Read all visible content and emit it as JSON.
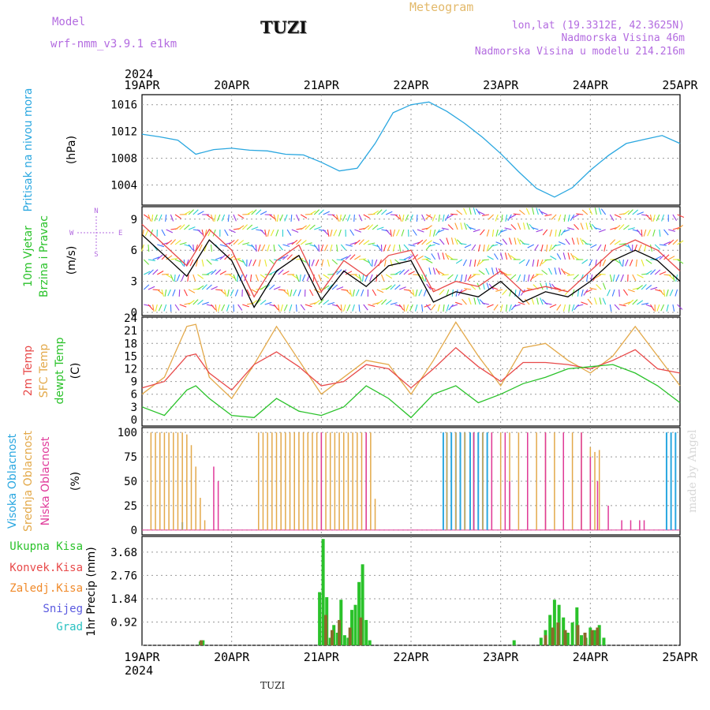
{
  "header": {
    "model_label": "Model",
    "model_name": "wrf-nmm_v3.9.1  e1km",
    "station": "TUZI",
    "meteogram_label": "Meteogram",
    "location": "lon,lat (19.3312E, 42.3625N)",
    "elevation": "Nadmorska Visina 46m",
    "model_elevation": "Nadmorska Visina u modelu 214.216m",
    "watermark": "made by Angel",
    "footer_station": "TUZI"
  },
  "axis": {
    "year": "2024",
    "days": [
      "19APR",
      "20APR",
      "21APR",
      "22APR",
      "23APR",
      "24APR",
      "25APR"
    ]
  },
  "colors": {
    "pressure": "#2aa7e0",
    "wind_speed": "#000000",
    "wind_gust": "#e84a4a",
    "temp_2m": "#e84a4a",
    "temp_sfc": "#e3a94a",
    "dewpoint": "#2ac22a",
    "cloud_high": "#2aa7e0",
    "cloud_mid": "#e3a94a",
    "cloud_low": "#e03a9a",
    "precip_total": "#2ac22a",
    "precip_conv": "#e84a4a",
    "precip_frozen": "#f08a2a",
    "snow": "#5a5ae0",
    "hail": "#2ac2c2"
  },
  "chart_data": [
    {
      "type": "line",
      "panel": "pressure",
      "ylabel_rotated": "Pritisak na nivou mora",
      "unit": "(hPa)",
      "x_days": [
        0,
        0.2,
        0.4,
        0.6,
        0.8,
        1.0,
        1.2,
        1.4,
        1.6,
        1.8,
        2.0,
        2.2,
        2.4,
        2.6,
        2.8,
        3.0,
        3.2,
        3.4,
        3.6,
        3.8,
        4.0,
        4.2,
        4.4,
        4.6,
        4.8,
        5.0,
        5.2,
        5.4,
        5.6,
        5.8,
        6.0
      ],
      "values": [
        1011.6,
        1011.2,
        1010.7,
        1008.6,
        1009.3,
        1009.5,
        1009.2,
        1009.1,
        1008.6,
        1008.5,
        1007.4,
        1006.1,
        1006.5,
        1010.2,
        1014.8,
        1016.0,
        1016.4,
        1015.0,
        1013.2,
        1011.1,
        1008.7,
        1006.0,
        1003.5,
        1002.2,
        1003.6,
        1006.2,
        1008.4,
        1010.2,
        1010.8,
        1011.4,
        1010.2
      ],
      "ticks": [
        1004,
        1008,
        1012,
        1016
      ],
      "ylim": [
        1001,
        1017.5
      ]
    },
    {
      "type": "line",
      "panel": "wind",
      "ylabel_rotated": [
        "10m Vjetar",
        "Brzina i Pravac"
      ],
      "unit": "(m/s)",
      "compass": {
        "n": "N",
        "s": "S",
        "w": "W",
        "e": "E"
      },
      "x_days": [
        0,
        0.25,
        0.5,
        0.75,
        1.0,
        1.25,
        1.5,
        1.75,
        2.0,
        2.25,
        2.5,
        2.75,
        3.0,
        3.25,
        3.5,
        3.75,
        4.0,
        4.25,
        4.5,
        4.75,
        5.0,
        5.25,
        5.5,
        5.75,
        6.0
      ],
      "series": [
        {
          "name": "speed",
          "values": [
            7.5,
            5.5,
            3.5,
            7.0,
            5.0,
            0.5,
            4.0,
            5.5,
            1.2,
            4.0,
            2.5,
            4.5,
            5.0,
            1.0,
            2.0,
            1.5,
            3.0,
            1.0,
            2.0,
            1.5,
            3.0,
            5.0,
            6.0,
            5.0,
            3.0
          ]
        },
        {
          "name": "gust",
          "values": [
            8.5,
            6.5,
            4.5,
            8.0,
            6.0,
            1.5,
            5.0,
            6.5,
            2.0,
            5.0,
            3.5,
            5.5,
            6.0,
            2.0,
            3.0,
            2.5,
            4.0,
            2.0,
            2.5,
            2.0,
            4.0,
            6.0,
            7.0,
            6.0,
            4.0
          ]
        }
      ],
      "ticks": [
        0,
        3,
        6,
        9
      ],
      "ylim": [
        -0.3,
        10.2
      ]
    },
    {
      "type": "line",
      "panel": "temperature",
      "ylabel_rotated": [
        "2m Temp",
        "SFC Temp",
        "dewpt Temp"
      ],
      "unit": "(C)",
      "x_days": [
        0,
        0.25,
        0.5,
        0.6,
        0.75,
        1.0,
        1.25,
        1.5,
        1.75,
        2.0,
        2.25,
        2.5,
        2.75,
        3.0,
        3.25,
        3.5,
        3.75,
        4.0,
        4.25,
        4.5,
        4.75,
        5.0,
        5.25,
        5.5,
        5.75,
        6.0
      ],
      "series": [
        {
          "name": "2m Temp",
          "values": [
            7.5,
            9.0,
            15.0,
            15.5,
            11.0,
            7.0,
            13.0,
            16.0,
            12.5,
            8.0,
            9.0,
            13.0,
            12.0,
            7.5,
            12.0,
            17.0,
            12.5,
            9.0,
            13.5,
            13.5,
            13.0,
            12.0,
            14.0,
            16.5,
            12.0,
            11.0
          ]
        },
        {
          "name": "SFC Temp",
          "values": [
            6.0,
            10.0,
            22.0,
            22.5,
            10.0,
            5.0,
            13.0,
            22.0,
            14.0,
            6.0,
            10.0,
            14.0,
            13.0,
            6.0,
            14.0,
            23.0,
            15.0,
            8.0,
            17.0,
            18.0,
            14.0,
            11.0,
            15.0,
            22.0,
            15.0,
            8.0
          ]
        },
        {
          "name": "dewpt Temp",
          "values": [
            3.0,
            1.0,
            7.0,
            8.0,
            5.0,
            1.0,
            0.5,
            5.0,
            2.0,
            1.0,
            3.0,
            8.0,
            5.0,
            0.5,
            6.0,
            8.0,
            4.0,
            6.0,
            8.5,
            10.0,
            12.0,
            12.5,
            13.0,
            11.0,
            8.0,
            4.0
          ]
        }
      ],
      "ticks": [
        0,
        3,
        6,
        9,
        12,
        15,
        18,
        21,
        24
      ],
      "ylim": [
        -1.5,
        24.2
      ]
    },
    {
      "type": "bar",
      "panel": "clouds",
      "ylabel_rotated": [
        "Visoka Oblacnost",
        "Srednja Oblacnost",
        "Niska Oblacnost"
      ],
      "unit": "(%)",
      "ticks": [
        0,
        25,
        50,
        75,
        100
      ],
      "ylim": [
        -5,
        105
      ],
      "series": [
        {
          "name": "Visoka Oblacnost",
          "x_days": [
            0.45,
            3.36,
            3.4,
            3.45,
            3.5,
            3.55,
            3.6,
            3.66,
            3.7,
            3.75,
            3.8,
            3.85,
            5.85,
            5.9,
            5.95
          ],
          "values": [
            8,
            100,
            100,
            100,
            100,
            100,
            100,
            100,
            100,
            100,
            100,
            100,
            100,
            100,
            100
          ]
        },
        {
          "name": "Srednja Oblacnost",
          "x_days": [
            0.1,
            0.15,
            0.2,
            0.25,
            0.3,
            0.35,
            0.4,
            0.45,
            0.5,
            0.55,
            0.6,
            0.65,
            0.7,
            1.3,
            1.35,
            1.4,
            1.45,
            1.5,
            1.55,
            1.6,
            1.65,
            1.7,
            1.75,
            1.8,
            1.85,
            1.9,
            1.95,
            2.0,
            2.05,
            2.1,
            2.15,
            2.2,
            2.25,
            2.3,
            2.35,
            2.4,
            2.45,
            2.5,
            2.55,
            2.6,
            3.4,
            3.5,
            3.6,
            3.7,
            3.8,
            3.9,
            4.0,
            4.1,
            4.2,
            4.3,
            4.4,
            4.5,
            4.6,
            4.7,
            4.8,
            4.9,
            5.0,
            5.05,
            5.1
          ],
          "values": [
            100,
            100,
            100,
            100,
            100,
            100,
            100,
            100,
            98,
            87,
            65,
            33,
            10,
            100,
            100,
            100,
            100,
            100,
            100,
            100,
            100,
            100,
            100,
            100,
            100,
            100,
            100,
            100,
            100,
            100,
            100,
            100,
            100,
            100,
            100,
            100,
            100,
            100,
            100,
            32,
            100,
            100,
            100,
            100,
            100,
            100,
            100,
            100,
            100,
            100,
            100,
            100,
            100,
            100,
            100,
            100,
            85,
            80,
            82
          ]
        },
        {
          "name": "Niska Oblacnost",
          "x_days": [
            0.8,
            0.85,
            2.0,
            2.5,
            3.7,
            3.9,
            4.05,
            4.1,
            4.3,
            4.5,
            4.7,
            4.9,
            5.0,
            5.08,
            5.2,
            5.35,
            5.45,
            5.55,
            5.6
          ],
          "values": [
            65,
            50,
            100,
            100,
            100,
            100,
            100,
            50,
            100,
            100,
            100,
            100,
            75,
            50,
            25,
            10,
            10,
            10,
            10
          ]
        }
      ]
    },
    {
      "type": "bar",
      "panel": "precipitation",
      "ylabel_rotated": "1hr Precip (mm)",
      "legend": [
        "Ukupna Kisa",
        "Konvek.Kisa",
        "Zaledj.Kisa",
        "Snijeg",
        "Grad"
      ],
      "ticks": [
        0,
        0.92,
        1.84,
        2.76,
        3.68
      ],
      "ylim": [
        0,
        4.3
      ],
      "series": [
        {
          "name": "Ukupna Kisa",
          "x_days": [
            0.65,
            0.68,
            1.98,
            2.02,
            2.06,
            2.1,
            2.14,
            2.18,
            2.22,
            2.26,
            2.3,
            2.34,
            2.38,
            2.42,
            2.46,
            2.5,
            2.54,
            4.15,
            4.45,
            4.5,
            4.55,
            4.6,
            4.65,
            4.7,
            4.75,
            4.8,
            4.85,
            4.9,
            4.95,
            5.0,
            5.05,
            5.1,
            5.15
          ],
          "values": [
            0.15,
            0.2,
            2.1,
            4.2,
            1.9,
            0.3,
            0.8,
            0.5,
            1.8,
            0.4,
            0.3,
            1.4,
            1.6,
            2.5,
            3.2,
            1.0,
            0.2,
            0.2,
            0.3,
            0.6,
            1.2,
            1.8,
            1.6,
            1.1,
            0.5,
            0.9,
            1.5,
            0.4,
            0.3,
            0.7,
            0.6,
            0.8,
            0.3
          ]
        },
        {
          "name": "Konvek.Kisa",
          "x_days": [
            0.66,
            2.05,
            2.12,
            2.2,
            2.32,
            2.44,
            4.5,
            4.58,
            4.64,
            4.72,
            4.86,
            4.94,
            5.02,
            5.08
          ],
          "values": [
            0.2,
            1.2,
            0.6,
            1.0,
            0.7,
            1.1,
            0.4,
            0.7,
            0.9,
            0.6,
            0.8,
            0.5,
            0.6,
            0.7
          ]
        }
      ]
    }
  ]
}
